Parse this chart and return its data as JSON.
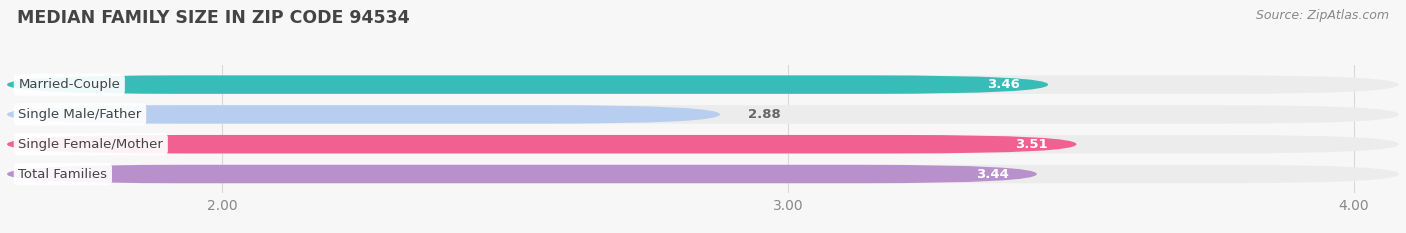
{
  "title": "MEDIAN FAMILY SIZE IN ZIP CODE 94534",
  "source": "Source: ZipAtlas.com",
  "categories": [
    "Married-Couple",
    "Single Male/Father",
    "Single Female/Mother",
    "Total Families"
  ],
  "values": [
    3.46,
    2.88,
    3.51,
    3.44
  ],
  "bar_colors": [
    "#38bcb8",
    "#b8cef0",
    "#f06090",
    "#b890cc"
  ],
  "bar_bg_color": "#ececec",
  "xlim_left": 1.62,
  "xlim_right": 4.08,
  "xticks": [
    2.0,
    3.0,
    4.0
  ],
  "xticklabels": [
    "2.00",
    "3.00",
    "4.00"
  ],
  "title_fontsize": 12.5,
  "tick_fontsize": 10,
  "source_fontsize": 9,
  "bar_height": 0.62,
  "background_color": "#f7f7f7",
  "label_text_color": "#444444",
  "value_label_color_inside": "#ffffff",
  "value_label_color_outside": "#666666",
  "grid_color": "#d8d8d8",
  "source_color": "#888888"
}
